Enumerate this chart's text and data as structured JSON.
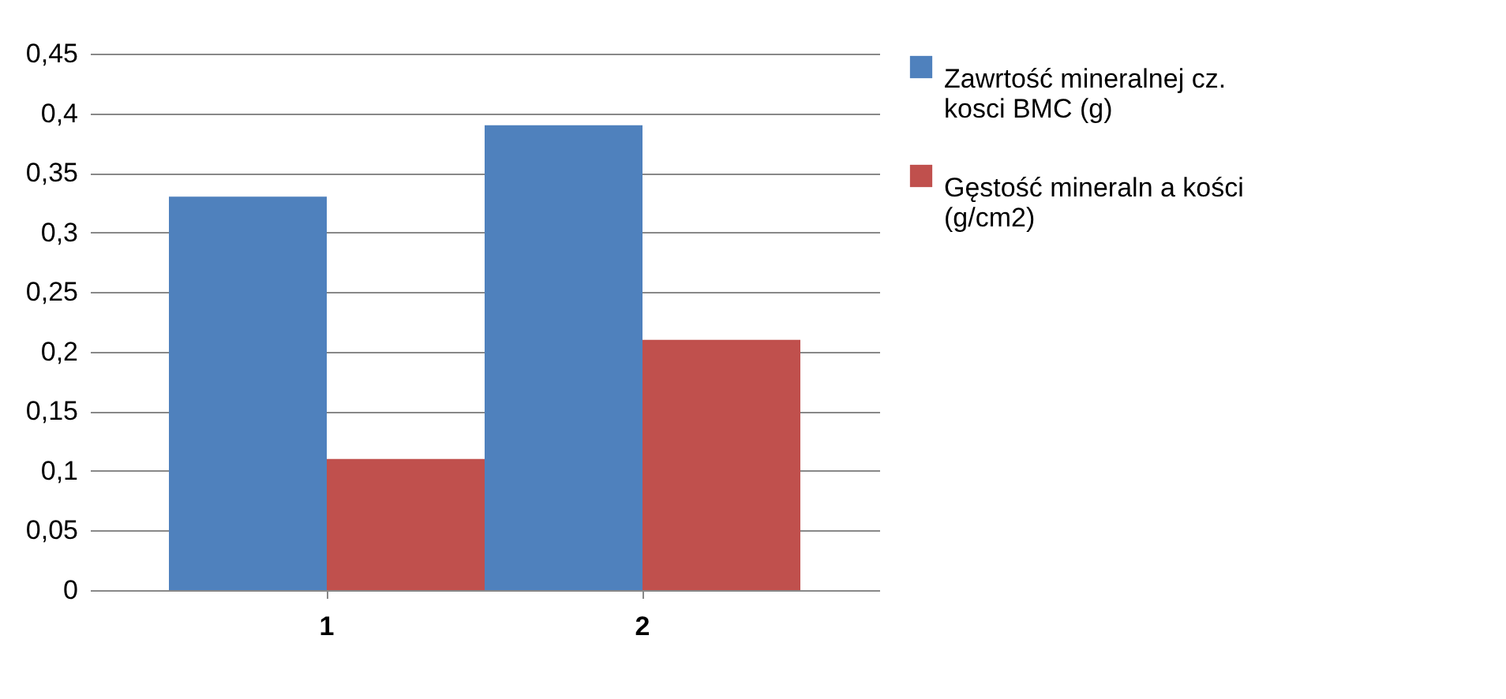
{
  "chart_data": {
    "type": "bar",
    "categories": [
      "1",
      "2"
    ],
    "series": [
      {
        "name": "Zawrtość mineralnej cz. kosci BMC (g)",
        "color": "#4f81bd",
        "values": [
          0.33,
          0.39
        ]
      },
      {
        "name": "Gęstość mineraln a kości (g/cm2)",
        "color": "#c0504d",
        "values": [
          0.11,
          0.21
        ]
      }
    ],
    "ylim": [
      0,
      0.45
    ],
    "yticks": [
      0,
      {
        "value": 0.05,
        "label": "0,05"
      },
      {
        "value": 0.1,
        "label": "0,1"
      },
      {
        "value": 0.15,
        "label": "0,15"
      },
      {
        "value": 0.2,
        "label": "0,2"
      },
      {
        "value": 0.25,
        "label": "0,25"
      },
      {
        "value": 0.3,
        "label": "0,3"
      },
      {
        "value": 0.35,
        "label": "0,35"
      },
      {
        "value": 0.4,
        "label": "0,4"
      },
      {
        "value": 0.45,
        "label": "0,45"
      }
    ],
    "grid": "y",
    "legend": "right"
  }
}
